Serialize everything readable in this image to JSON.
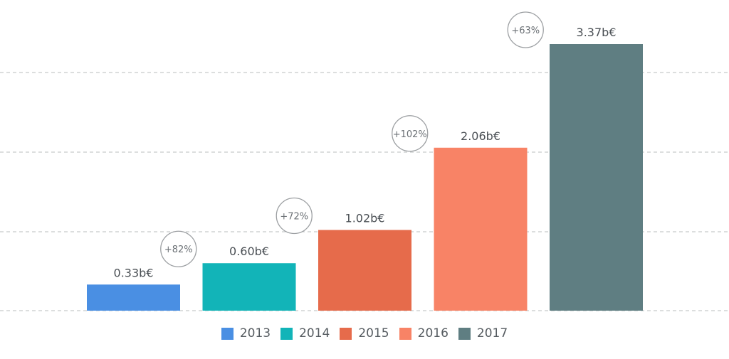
{
  "chart_data": {
    "type": "bar",
    "categories": [
      "2013",
      "2014",
      "2015",
      "2016",
      "2017"
    ],
    "values": [
      0.33,
      0.6,
      1.02,
      2.06,
      3.37
    ],
    "value_labels": [
      "0.33b€",
      "0.60b€",
      "1.02b€",
      "2.06b€",
      "3.37b€"
    ],
    "growth_labels": [
      "+82%",
      "+72%",
      "+102%",
      "+63%"
    ],
    "colors": [
      "#4a8fe3",
      "#12b4b8",
      "#e66b4b",
      "#f88366",
      "#5f7e82"
    ],
    "ylim": [
      0,
      3.37
    ],
    "grid": true,
    "legend_position": "bottom-center",
    "title": "",
    "xlabel": "",
    "ylabel": ""
  }
}
